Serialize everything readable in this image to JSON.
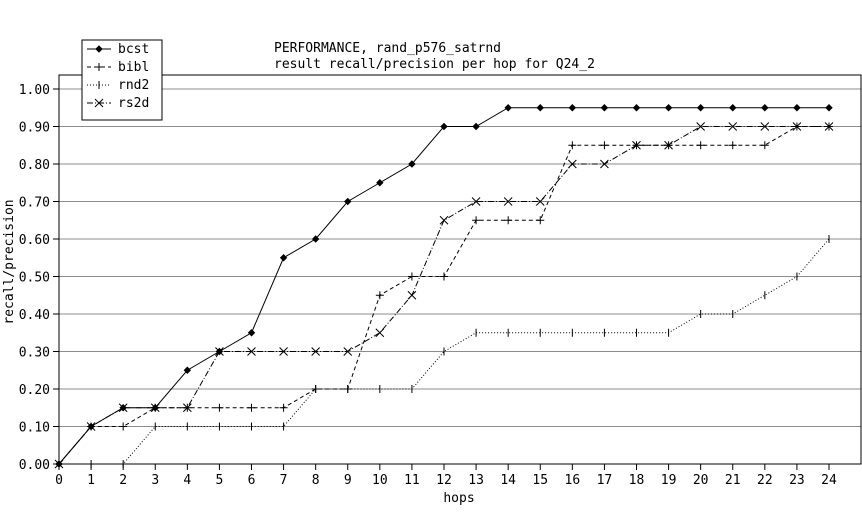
{
  "chart_data": {
    "type": "line",
    "title": "PERFORMANCE, rand_p576_satrnd",
    "subtitle": "result recall/precision per hop for Q24_2",
    "xlabel": "hops",
    "ylabel": "recall/precision",
    "x": [
      0,
      1,
      2,
      3,
      4,
      5,
      6,
      7,
      8,
      9,
      10,
      11,
      12,
      13,
      14,
      15,
      16,
      17,
      18,
      19,
      20,
      21,
      22,
      23,
      24
    ],
    "xlim": [
      0,
      24
    ],
    "ylim": [
      0,
      1.0
    ],
    "yticks": [
      0.0,
      0.1,
      0.2,
      0.3,
      0.4,
      0.5,
      0.6,
      0.7,
      0.8,
      0.9,
      1.0
    ],
    "ytick_labels": [
      "0.00",
      "0.10",
      "0.20",
      "0.30",
      "0.40",
      "0.50",
      "0.60",
      "0.70",
      "0.80",
      "0.90",
      "1.00"
    ],
    "grid": "horizontal",
    "legend_position": "top-left",
    "series": [
      {
        "name": "bcst",
        "marker": "diamond",
        "dash": "solid",
        "values": [
          0.0,
          0.1,
          0.15,
          0.15,
          0.25,
          0.3,
          0.35,
          0.55,
          0.6,
          0.7,
          0.75,
          0.8,
          0.9,
          0.9,
          0.95,
          0.95,
          0.95,
          0.95,
          0.95,
          0.95,
          0.95,
          0.95,
          0.95,
          0.95,
          0.95
        ]
      },
      {
        "name": "bibl",
        "marker": "plus",
        "dash": "dashed",
        "values": [
          0.0,
          0.1,
          0.1,
          0.15,
          0.15,
          0.15,
          0.15,
          0.15,
          0.2,
          0.2,
          0.45,
          0.5,
          0.5,
          0.65,
          0.65,
          0.65,
          0.85,
          0.85,
          0.85,
          0.85,
          0.85,
          0.85,
          0.85,
          0.9,
          0.9
        ]
      },
      {
        "name": "rnd2",
        "marker": "vbar",
        "dash": "dotted",
        "values": [
          0.0,
          0.0,
          0.0,
          0.1,
          0.1,
          0.1,
          0.1,
          0.1,
          0.2,
          0.2,
          0.2,
          0.2,
          0.3,
          0.35,
          0.35,
          0.35,
          0.35,
          0.35,
          0.35,
          0.35,
          0.4,
          0.4,
          0.45,
          0.5,
          0.6
        ]
      },
      {
        "name": "rs2d",
        "marker": "x",
        "dash": "dashdot",
        "values": [
          0.0,
          0.1,
          0.15,
          0.15,
          0.15,
          0.3,
          0.3,
          0.3,
          0.3,
          0.3,
          0.35,
          0.45,
          0.65,
          0.7,
          0.7,
          0.7,
          0.8,
          0.8,
          0.85,
          0.85,
          0.9,
          0.9,
          0.9,
          0.9,
          0.9
        ]
      }
    ]
  }
}
